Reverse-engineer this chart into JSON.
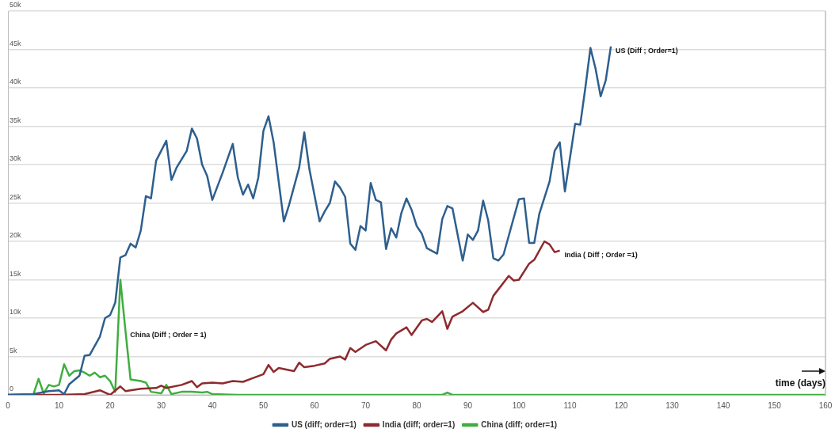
{
  "chart_data": {
    "type": "line",
    "xlabel": "time (days)",
    "xlim": [
      0,
      160
    ],
    "xticks": [
      0,
      10,
      20,
      30,
      40,
      50,
      60,
      70,
      80,
      90,
      100,
      110,
      120,
      130,
      140,
      150,
      160
    ],
    "ylim": [
      0,
      50000
    ],
    "yticks": [
      0,
      {
        "value": 5000,
        "label": "5k"
      },
      {
        "value": 10000,
        "label": "10k"
      },
      {
        "value": 15000,
        "label": "15k"
      },
      {
        "value": 20000,
        "label": "20k"
      },
      {
        "value": 25000,
        "label": "25k"
      },
      {
        "value": 30000,
        "label": "30k"
      },
      {
        "value": 35000,
        "label": "35k"
      },
      {
        "value": 40000,
        "label": "40k"
      },
      {
        "value": 45000,
        "label": "45k"
      },
      {
        "value": 50000,
        "label": "50k"
      }
    ],
    "grid": "y",
    "legend": "bottom",
    "marker": "none",
    "line_style": "solid",
    "series": [
      {
        "name": "US (diff; order=1)",
        "color": "#2e5f8e",
        "x": [
          0,
          5,
          8,
          10,
          11,
          12,
          14,
          15,
          16,
          18,
          19,
          20,
          21,
          22,
          23,
          24,
          25,
          26,
          27,
          28,
          29,
          31,
          32,
          33,
          35,
          36,
          37,
          38,
          39,
          40,
          42,
          44,
          45,
          46,
          47,
          48,
          49,
          50,
          51,
          52,
          54,
          55,
          57,
          58,
          59,
          61,
          62,
          63,
          64,
          65,
          66,
          67,
          68,
          69,
          70,
          71,
          72,
          73,
          74,
          75,
          76,
          77,
          78,
          79,
          80,
          81,
          82,
          84,
          85,
          86,
          87,
          89,
          90,
          91,
          92,
          93,
          94,
          95,
          96,
          97,
          98,
          100,
          101,
          102,
          103,
          104,
          106,
          107,
          108,
          109,
          111,
          112,
          113,
          114,
          115,
          116,
          117,
          118
        ],
        "values": [
          0,
          100,
          500,
          600,
          100,
          1400,
          2500,
          5100,
          5200,
          7600,
          10000,
          10400,
          12000,
          17900,
          18200,
          19700,
          19200,
          21400,
          25900,
          25600,
          30500,
          33100,
          28000,
          29600,
          31800,
          34700,
          33400,
          30000,
          28500,
          25400,
          28900,
          32700,
          28300,
          26100,
          27400,
          25600,
          28300,
          34400,
          36300,
          32900,
          22600,
          24700,
          29600,
          34200,
          29400,
          22600,
          23900,
          25000,
          27800,
          27000,
          25800,
          19700,
          18900,
          22000,
          21400,
          27600,
          25400,
          25100,
          19000,
          21700,
          20500,
          23700,
          25600,
          24100,
          22000,
          21000,
          19100,
          18400,
          22900,
          24600,
          24300,
          17500,
          20900,
          20200,
          21400,
          25300,
          22700,
          17800,
          17500,
          18300,
          20700,
          25500,
          25600,
          19800,
          19800,
          23600,
          27800,
          31800,
          32900,
          26500,
          35300,
          35200,
          40000,
          45200,
          42500,
          38900,
          41000,
          45400
        ]
      },
      {
        "name": "India (diff; order=1)",
        "color": "#8e2a2e",
        "x": [
          0,
          10,
          15,
          18,
          20,
          22,
          23,
          26,
          29,
          30,
          31,
          34,
          36,
          37,
          38,
          40,
          42,
          44,
          46,
          48,
          50,
          51,
          52,
          53,
          56,
          57,
          58,
          60,
          62,
          63,
          65,
          66,
          67,
          68,
          70,
          72,
          74,
          75,
          76,
          78,
          79,
          81,
          82,
          83,
          85,
          86,
          87,
          89,
          91,
          93,
          94,
          95,
          98,
          99,
          100,
          102,
          103,
          105,
          106,
          107,
          108
        ],
        "values": [
          0,
          0,
          100,
          600,
          0,
          1100,
          500,
          800,
          900,
          1200,
          900,
          1300,
          1800,
          1000,
          1500,
          1600,
          1500,
          1800,
          1700,
          2200,
          2700,
          3900,
          3000,
          3500,
          3100,
          4200,
          3600,
          3800,
          4100,
          4700,
          5000,
          4600,
          6100,
          5600,
          6500,
          7000,
          5800,
          7200,
          8000,
          8800,
          7800,
          9700,
          9900,
          9500,
          10900,
          8600,
          10200,
          10900,
          12000,
          10800,
          11100,
          12900,
          15500,
          14900,
          15000,
          17100,
          17600,
          20000,
          19600,
          18600,
          18800
        ]
      },
      {
        "name": "China (diff; order=1)",
        "color": "#3fae3f",
        "x": [
          0,
          5,
          6,
          7,
          8,
          9,
          10,
          11,
          12,
          13,
          14,
          15,
          16,
          17,
          18,
          19,
          20,
          21,
          22,
          23,
          24,
          26,
          27,
          28,
          30,
          31,
          32,
          34,
          36,
          38,
          39,
          40,
          45,
          50,
          85,
          86,
          87,
          160
        ],
        "values": [
          0,
          100,
          2100,
          200,
          1300,
          1100,
          1300,
          4000,
          2500,
          3100,
          3200,
          2900,
          2500,
          2900,
          2300,
          2500,
          1800,
          400,
          15000,
          8400,
          2000,
          1800,
          1600,
          400,
          200,
          1300,
          100,
          400,
          400,
          300,
          400,
          100,
          0,
          0,
          0,
          300,
          0,
          0
        ]
      }
    ],
    "annotations": [
      {
        "text": "US (Diff ; Order=1)",
        "x": 118,
        "y": 45400
      },
      {
        "text": "India ( Diff ; Order =1)",
        "x": 108,
        "y": 18800
      },
      {
        "text": "China (Diff ; Order = 1)",
        "x": 23,
        "y": 8400
      }
    ]
  }
}
